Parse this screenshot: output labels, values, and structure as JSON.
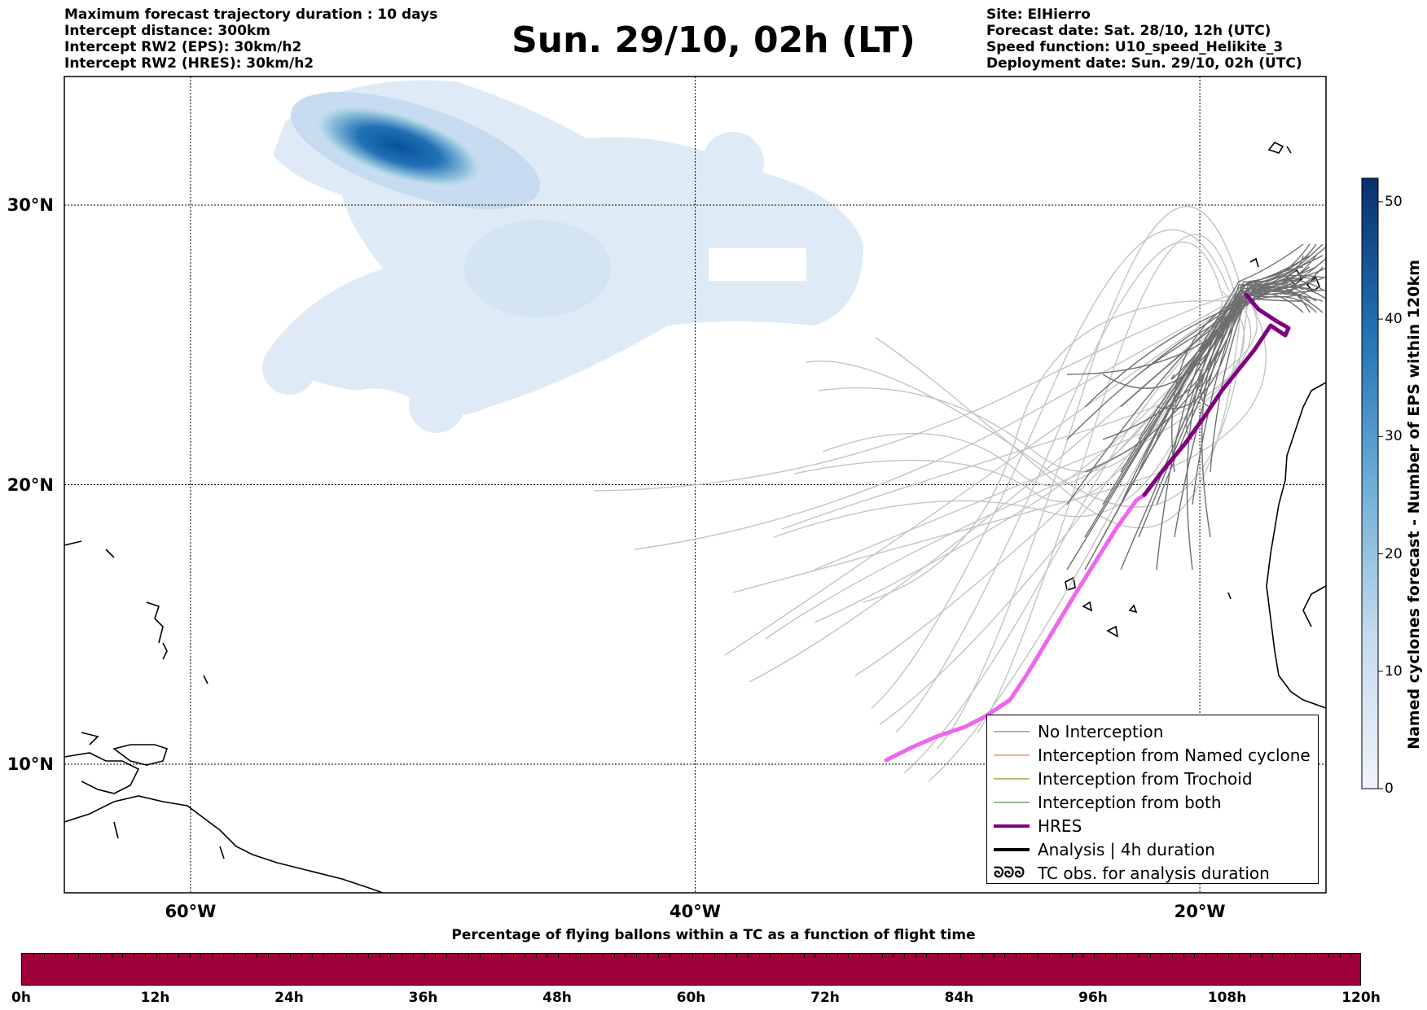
{
  "header_left": [
    "Maximum forecast trajectory duration : 10 days",
    "Intercept distance: 300km",
    "Intercept RW2 (EPS):  30km/h2",
    "Intercept RW2 (HRES): 30km/h2"
  ],
  "title": "Sun. 29/10, 02h (LT)",
  "header_right": [
    "Site: ElHierro",
    "Forecast date: Sat. 28/10, 12h (UTC)",
    "Speed function: U10_speed_Helikite_3",
    "Deployment date: Sun. 29/10, 02h (UTC)"
  ],
  "map": {
    "lat_ticks": [
      "30°N",
      "20°N",
      "10°N"
    ],
    "lon_ticks": [
      "60°W",
      "40°W",
      "20°W"
    ],
    "lat_values": [
      30,
      20,
      10
    ],
    "lon_values": [
      -60,
      -40,
      -20
    ],
    "extent": {
      "lon_min": -65,
      "lon_max": -15,
      "lat_min": 5.4,
      "lat_max": 34.6
    },
    "colors": {
      "no_interception": "#6e6e6e",
      "faded_trajectory": "#c4c4c4",
      "hres_analysis": "#800080",
      "hres_forecast": "#ee66ee",
      "named_cyclone": "#e4572e",
      "trochoid": "#808000",
      "both": "#1a7f1a",
      "density_light": "#deebf7",
      "density_dark": "#08519c"
    }
  },
  "legend": [
    {
      "label": "No Interception",
      "swatch": "line",
      "color": "#6e6e6e",
      "width": 1.2
    },
    {
      "label": "Interception from Named cyclone",
      "swatch": "line",
      "color": "#e4572e",
      "width": 1.2
    },
    {
      "label": "Interception from Trochoid",
      "swatch": "line",
      "color": "#808000",
      "width": 1.2
    },
    {
      "label": "Interception from both",
      "swatch": "line",
      "color": "#1a7f1a",
      "width": 1.2
    },
    {
      "label": "HRES",
      "swatch": "line",
      "color": "#800080",
      "width": 4
    },
    {
      "label": "Analysis | 4h duration",
      "swatch": "line",
      "color": "#000000",
      "width": 4
    },
    {
      "label": "TC obs. for analysis duration",
      "swatch": "symbol",
      "color": "#000000",
      "symbol": "ᘐᘐᘐ"
    }
  ],
  "colorbar": {
    "label": "Named cyclones forecast - Number of EPS within 120km",
    "ticks": [
      "0",
      "10",
      "20",
      "30",
      "40",
      "50"
    ],
    "max": 52
  },
  "bottom_title": "Percentage of flying ballons within a TC as a function of flight time",
  "time_ticks": [
    "0h",
    "12h",
    "24h",
    "36h",
    "48h",
    "60h",
    "72h",
    "84h",
    "96h",
    "108h",
    "120h"
  ],
  "time_bar_color": "#a0003c"
}
